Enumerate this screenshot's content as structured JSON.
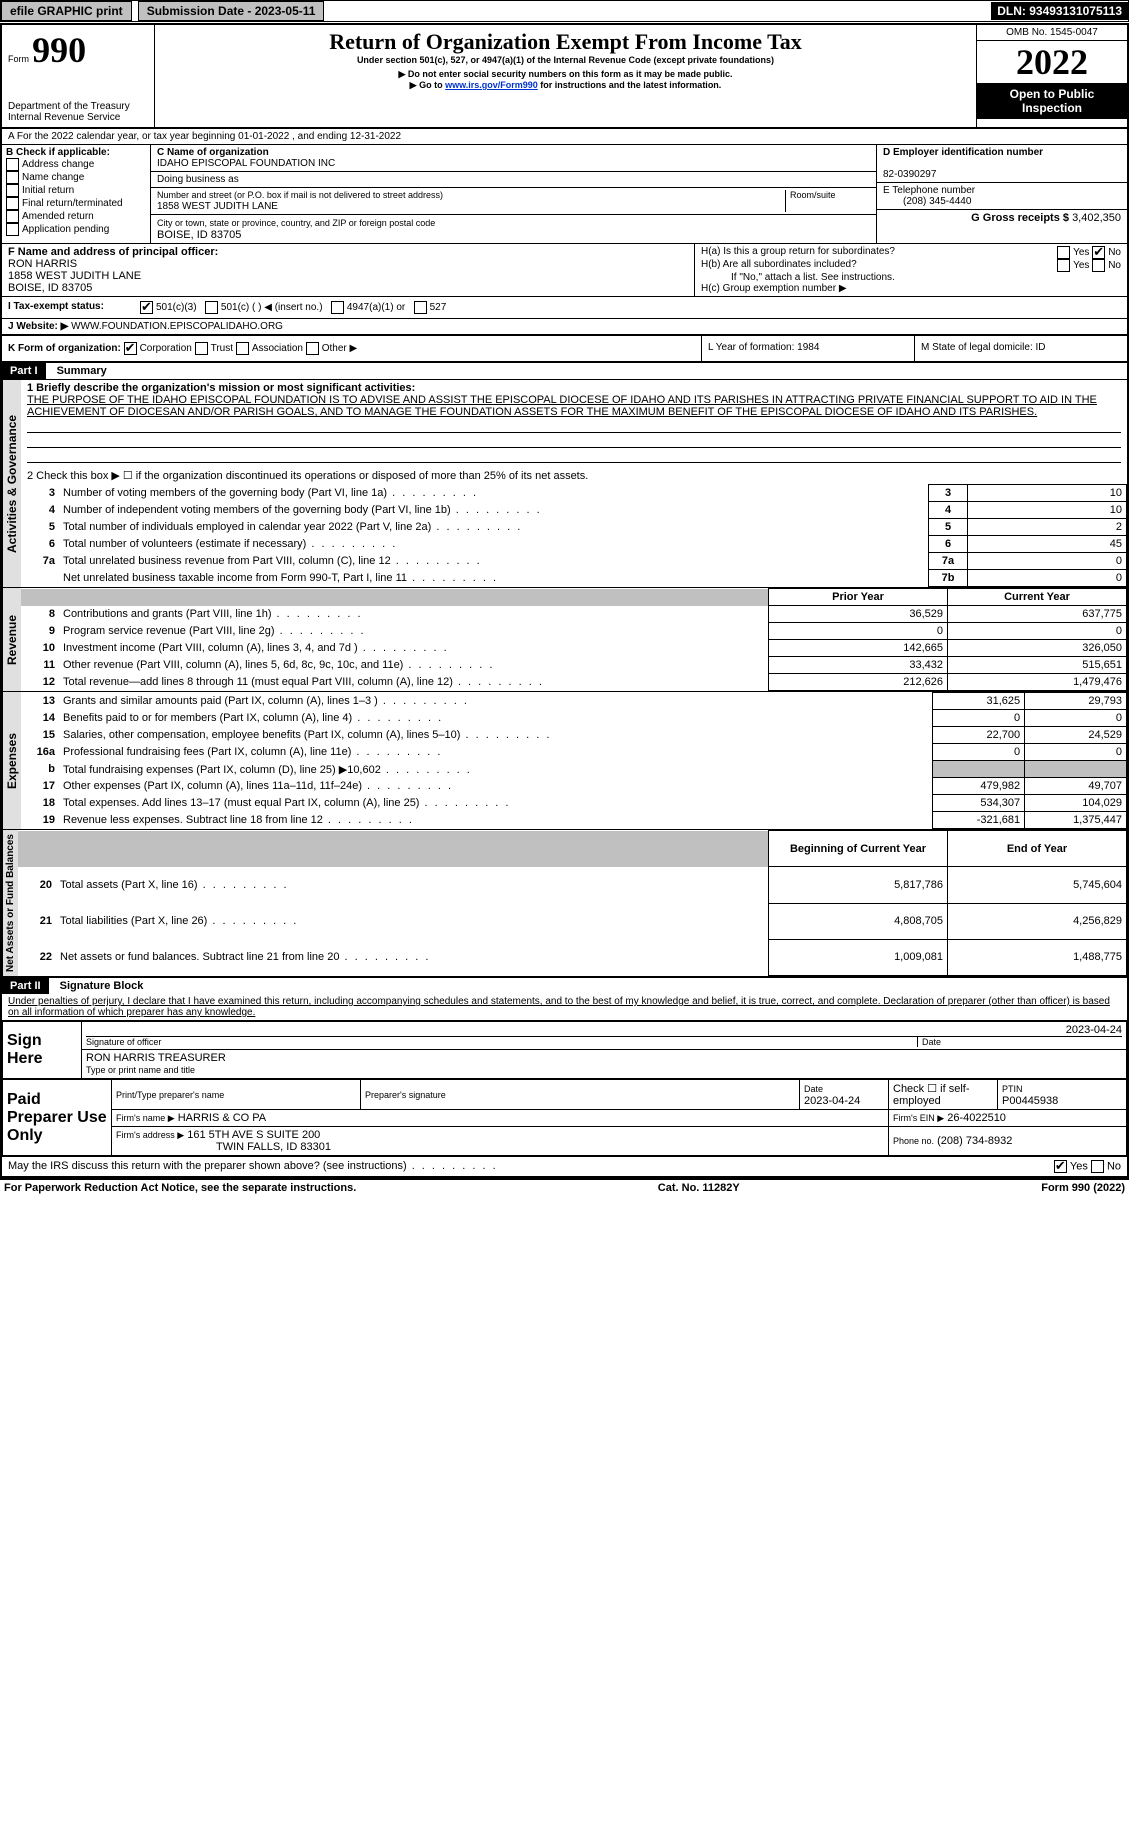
{
  "top": {
    "efile": "efile GRAPHIC print",
    "submission": "Submission Date - 2023-05-11",
    "dln": "DLN: 93493131075113"
  },
  "header": {
    "form_prefix": "Form",
    "form_num": "990",
    "dept": "Department of the Treasury",
    "irs": "Internal Revenue Service",
    "title": "Return of Organization Exempt From Income Tax",
    "subtitle": "Under section 501(c), 527, or 4947(a)(1) of the Internal Revenue Code (except private foundations)",
    "note1": "▶ Do not enter social security numbers on this form as it may be made public.",
    "note2_pre": "▶ Go to ",
    "note2_link": "www.irs.gov/Form990",
    "note2_post": " for instructions and the latest information.",
    "omb": "OMB No. 1545-0047",
    "year": "2022",
    "open": "Open to Public Inspection"
  },
  "period": {
    "line": "A For the 2022 calendar year, or tax year beginning 01-01-2022    , and ending 12-31-2022"
  },
  "checkb": {
    "b_label": "B Check if applicable:",
    "addr": "Address change",
    "name": "Name change",
    "initial": "Initial return",
    "final": "Final return/terminated",
    "amended": "Amended return",
    "app": "Application pending"
  },
  "entity": {
    "c_label": "C Name of organization",
    "org": "IDAHO EPISCOPAL FOUNDATION INC",
    "dba": "Doing business as",
    "addr_label": "Number and street (or P.O. box if mail is not delivered to street address)",
    "room": "Room/suite",
    "addr": "1858 WEST JUDITH LANE",
    "city_label": "City or town, state or province, country, and ZIP or foreign postal code",
    "city": "BOISE, ID  83705",
    "d_label": "D Employer identification number",
    "ein": "82-0390297",
    "e_label": "E Telephone number",
    "phone": "(208) 345-4440",
    "g_label": "G Gross receipts $ ",
    "gross": "3,402,350",
    "f_label": "F Name and address of principal officer:",
    "officer": "RON HARRIS",
    "officer_addr": "1858 WEST JUDITH LANE",
    "officer_city": "BOISE, ID  83705",
    "ha": "H(a)  Is this a group return for subordinates?",
    "hb": "H(b)  Are all subordinates included?",
    "hb_note": "If \"No,\" attach a list. See instructions.",
    "hc": "H(c)  Group exemption number ▶",
    "yes": "Yes",
    "no": "No"
  },
  "status": {
    "i": "I  Tax-exempt status:",
    "s501c3": "501(c)(3)",
    "s501c": "501(c) (   ) ◀ (insert no.)",
    "s4947": "4947(a)(1) or",
    "s527": "527",
    "j": "J  Website: ▶",
    "website": "WWW.FOUNDATION.EPISCOPALIDAHO.ORG",
    "k": "K Form of organization:",
    "corp": "Corporation",
    "trust": "Trust",
    "assoc": "Association",
    "other": "Other ▶",
    "l": "L Year of formation: 1984",
    "m": "M State of legal domicile: ID"
  },
  "part1": {
    "header": "Part I",
    "title": "Summary",
    "vert1": "Activities & Governance",
    "vert2": "Revenue",
    "vert3": "Expenses",
    "vert4": "Net Assets or Fund Balances",
    "l1": "1  Briefly describe the organization's mission or most significant activities:",
    "mission": "THE PURPOSE OF THE IDAHO EPISCOPAL FOUNDATION IS TO ADVISE AND ASSIST THE EPISCOPAL DIOCESE OF IDAHO AND ITS PARISHES IN ATTRACTING PRIVATE FINANCIAL SUPPORT TO AID IN THE ACHIEVEMENT OF DIOCESAN AND/OR PARISH GOALS, AND TO MANAGE THE FOUNDATION ASSETS FOR THE MAXIMUM BENEFIT OF THE EPISCOPAL DIOCESE OF IDAHO AND ITS PARISHES.",
    "l2": "2  Check this box ▶ ☐ if the organization discontinued its operations or disposed of more than 25% of its net assets.",
    "rows_gov": [
      {
        "n": "3",
        "t": "Number of voting members of the governing body (Part VI, line 1a)",
        "b": "3",
        "v": "10"
      },
      {
        "n": "4",
        "t": "Number of independent voting members of the governing body (Part VI, line 1b)",
        "b": "4",
        "v": "10"
      },
      {
        "n": "5",
        "t": "Total number of individuals employed in calendar year 2022 (Part V, line 2a)",
        "b": "5",
        "v": "2"
      },
      {
        "n": "6",
        "t": "Total number of volunteers (estimate if necessary)",
        "b": "6",
        "v": "45"
      },
      {
        "n": "7a",
        "t": "Total unrelated business revenue from Part VIII, column (C), line 12",
        "b": "7a",
        "v": "0"
      },
      {
        "n": "",
        "t": "Net unrelated business taxable income from Form 990-T, Part I, line 11",
        "b": "7b",
        "v": "0"
      }
    ],
    "col_prior": "Prior Year",
    "col_current": "Current Year",
    "rows_rev": [
      {
        "n": "8",
        "t": "Contributions and grants (Part VIII, line 1h)",
        "p": "36,529",
        "c": "637,775"
      },
      {
        "n": "9",
        "t": "Program service revenue (Part VIII, line 2g)",
        "p": "0",
        "c": "0"
      },
      {
        "n": "10",
        "t": "Investment income (Part VIII, column (A), lines 3, 4, and 7d )",
        "p": "142,665",
        "c": "326,050"
      },
      {
        "n": "11",
        "t": "Other revenue (Part VIII, column (A), lines 5, 6d, 8c, 9c, 10c, and 11e)",
        "p": "33,432",
        "c": "515,651"
      },
      {
        "n": "12",
        "t": "Total revenue—add lines 8 through 11 (must equal Part VIII, column (A), line 12)",
        "p": "212,626",
        "c": "1,479,476"
      }
    ],
    "rows_exp": [
      {
        "n": "13",
        "t": "Grants and similar amounts paid (Part IX, column (A), lines 1–3 )",
        "p": "31,625",
        "c": "29,793"
      },
      {
        "n": "14",
        "t": "Benefits paid to or for members (Part IX, column (A), line 4)",
        "p": "0",
        "c": "0"
      },
      {
        "n": "15",
        "t": "Salaries, other compensation, employee benefits (Part IX, column (A), lines 5–10)",
        "p": "22,700",
        "c": "24,529"
      },
      {
        "n": "16a",
        "t": "Professional fundraising fees (Part IX, column (A), line 11e)",
        "p": "0",
        "c": "0"
      },
      {
        "n": "b",
        "t": "Total fundraising expenses (Part IX, column (D), line 25) ▶10,602",
        "p": "",
        "c": "",
        "shaded": true
      },
      {
        "n": "17",
        "t": "Other expenses (Part IX, column (A), lines 11a–11d, 11f–24e)",
        "p": "479,982",
        "c": "49,707"
      },
      {
        "n": "18",
        "t": "Total expenses. Add lines 13–17 (must equal Part IX, column (A), line 25)",
        "p": "534,307",
        "c": "104,029"
      },
      {
        "n": "19",
        "t": "Revenue less expenses. Subtract line 18 from line 12",
        "p": "-321,681",
        "c": "1,375,447"
      }
    ],
    "col_begin": "Beginning of Current Year",
    "col_end": "End of Year",
    "rows_net": [
      {
        "n": "20",
        "t": "Total assets (Part X, line 16)",
        "p": "5,817,786",
        "c": "5,745,604"
      },
      {
        "n": "21",
        "t": "Total liabilities (Part X, line 26)",
        "p": "4,808,705",
        "c": "4,256,829"
      },
      {
        "n": "22",
        "t": "Net assets or fund balances. Subtract line 21 from line 20",
        "p": "1,009,081",
        "c": "1,488,775"
      }
    ]
  },
  "part2": {
    "header": "Part II",
    "title": "Signature Block",
    "decl": "Under penalties of perjury, I declare that I have examined this return, including accompanying schedules and statements, and to the best of my knowledge and belief, it is true, correct, and complete. Declaration of preparer (other than officer) is based on all information of which preparer has any knowledge.",
    "sign": "Sign Here",
    "sig_officer": "Signature of officer",
    "date": "Date",
    "sig_date": "2023-04-24",
    "name_title": "RON HARRIS  TREASURER",
    "type_name": "Type or print name and title",
    "paid": "Paid Preparer Use Only",
    "prep_name_label": "Print/Type preparer's name",
    "prep_sig_label": "Preparer's signature",
    "prep_date": "2023-04-24",
    "check_self": "Check ☐ if self-employed",
    "ptin_label": "PTIN",
    "ptin": "P00445938",
    "firm_name_label": "Firm's name    ▶",
    "firm_name": "HARRIS & CO PA",
    "firm_ein_label": "Firm's EIN ▶",
    "firm_ein": "26-4022510",
    "firm_addr_label": "Firm's address ▶",
    "firm_addr": "161 5TH AVE S SUITE 200",
    "firm_city": "TWIN FALLS, ID  83301",
    "phone_label": "Phone no.",
    "phone": "(208) 734-8932",
    "may": "May the IRS discuss this return with the preparer shown above? (see instructions)"
  },
  "footer": {
    "pra": "For Paperwork Reduction Act Notice, see the separate instructions.",
    "cat": "Cat. No. 11282Y",
    "form": "Form 990 (2022)"
  }
}
